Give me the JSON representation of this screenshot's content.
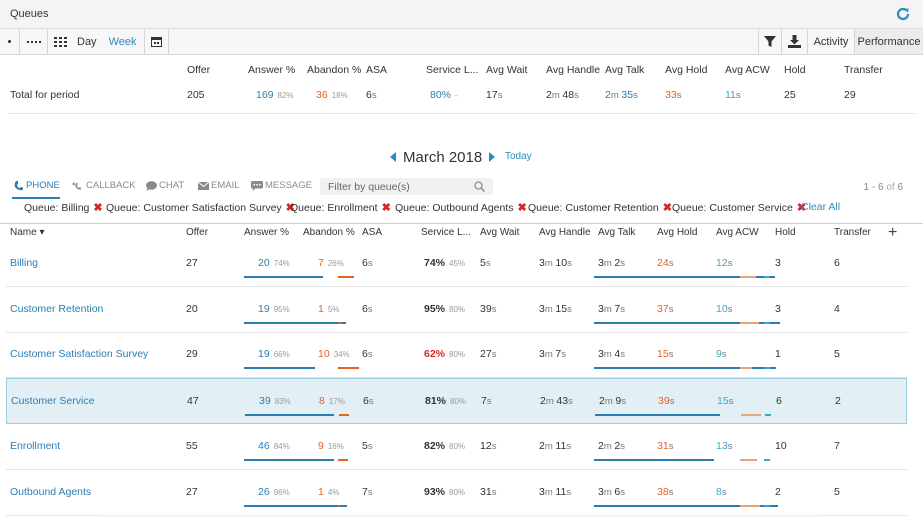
{
  "app": {
    "title": "Queues"
  },
  "toolbar": {
    "day_label": "Day",
    "week_label": "Week",
    "activity_label": "Activity",
    "performance_label": "Performance"
  },
  "summary": {
    "headers": [
      "Offer",
      "Answer %",
      "Abandon %",
      "ASA",
      "Service L...",
      "Avg Wait",
      "Avg Handle",
      "Avg Talk",
      "Avg Hold",
      "Avg ACW",
      "Hold",
      "Transfer"
    ],
    "row_label": "Total for period",
    "offer": "205",
    "answer": "169",
    "answer_pct": "82%",
    "abandon": "36",
    "abandon_pct": "18%",
    "asa_n": "6",
    "asa_u": "s",
    "service": "80%",
    "service_sub": "-",
    "wait_n": "17",
    "wait_u": "s",
    "handle_m": "2",
    "handle_s": "48",
    "talk_m": "2",
    "talk_s": "35",
    "hold_n": "33",
    "hold_u": "s",
    "acw_n": "11",
    "acw_u": "s",
    "hold_count": "25",
    "transfer": "29"
  },
  "calendar": {
    "month": "March 2018",
    "today_label": "Today"
  },
  "channels": {
    "phone": "PHONE",
    "callback": "CALLBACK",
    "chat": "CHAT",
    "email": "EMAIL",
    "message": "MESSAGE"
  },
  "filter": {
    "placeholder": "Filter by queue(s)"
  },
  "paging": {
    "range": "1 - 6",
    "of": "of",
    "total": "6"
  },
  "chips": {
    "items": [
      "Queue: Billing",
      "Queue: Customer Satisfaction Survey",
      "Queue: Enrollment",
      "Queue: Outbound Agents",
      "Queue: Customer Retention",
      "Queue: Customer Service"
    ],
    "clear_label": "Clear All"
  },
  "table": {
    "headers": [
      "Name",
      "Offer",
      "Answer %",
      "Abandon %",
      "ASA",
      "Service L...",
      "Avg Wait",
      "Avg Handle",
      "Avg Talk",
      "Avg Hold",
      "Avg ACW",
      "Hold",
      "Transfer"
    ],
    "rows": [
      {
        "name": "Billing",
        "offer": "27",
        "answer": "20",
        "answer_pct": "74%",
        "abandon": "7",
        "abandon_pct": "26%",
        "asa": "6",
        "service": "74%",
        "service_goal": "45%",
        "service_color": "#333333",
        "wait": "5",
        "handle_m": "3",
        "handle_s": "10",
        "talk_m": "3",
        "talk_s": "2",
        "hold": "24",
        "acw": "12",
        "hold_count": "3",
        "transfer": "6",
        "answer_frac": 0.74,
        "abandon_frac": 0.26,
        "talk_frac": 0.95,
        "hold_frac": 0.45,
        "acw_frac": 0.55
      },
      {
        "name": "Customer Retention",
        "offer": "20",
        "answer": "19",
        "answer_pct": "95%",
        "abandon": "1",
        "abandon_pct": "5%",
        "asa": "6",
        "service": "95%",
        "service_goal": "80%",
        "service_color": "#333333",
        "wait": "39",
        "handle_m": "3",
        "handle_s": "15",
        "talk_m": "3",
        "talk_s": "7",
        "hold": "37",
        "acw": "10",
        "hold_count": "3",
        "transfer": "4",
        "answer_frac": 0.95,
        "abandon_frac": 0.05,
        "talk_frac": 0.98,
        "hold_frac": 0.6,
        "acw_frac": 0.45
      },
      {
        "name": "Customer Satisfaction Survey",
        "offer": "29",
        "answer": "19",
        "answer_pct": "66%",
        "abandon": "10",
        "abandon_pct": "34%",
        "asa": "6",
        "service": "62%",
        "service_goal": "80%",
        "service_color": "#d9262c",
        "wait": "27",
        "handle_m": "3",
        "handle_s": "7",
        "talk_m": "3",
        "talk_s": "4",
        "hold": "15",
        "acw": "9",
        "hold_count": "1",
        "transfer": "5",
        "answer_frac": 0.66,
        "abandon_frac": 0.34,
        "talk_frac": 0.96,
        "hold_frac": 0.25,
        "acw_frac": 0.4
      },
      {
        "name": "Customer Service",
        "offer": "47",
        "answer": "39",
        "answer_pct": "83%",
        "abandon": "8",
        "abandon_pct": "17%",
        "asa": "6",
        "service": "81%",
        "service_goal": "80%",
        "service_color": "#333333",
        "wait": "7",
        "handle_m": "2",
        "handle_s": "43",
        "talk_m": "2",
        "talk_s": "9",
        "hold": "39",
        "acw": "15",
        "hold_count": "6",
        "transfer": "2",
        "answer_frac": 0.83,
        "abandon_frac": 0.17,
        "talk_frac": 0.66,
        "hold_frac": 0.65,
        "acw_frac": 0.68
      },
      {
        "name": "Enrollment",
        "offer": "55",
        "answer": "46",
        "answer_pct": "84%",
        "abandon": "9",
        "abandon_pct": "16%",
        "asa": "5",
        "service": "82%",
        "service_goal": "80%",
        "service_color": "#333333",
        "wait": "12",
        "handle_m": "2",
        "handle_s": "11",
        "talk_m": "2",
        "talk_s": "2",
        "hold": "31",
        "acw": "13",
        "hold_count": "10",
        "transfer": "7",
        "answer_frac": 0.84,
        "abandon_frac": 0.16,
        "talk_frac": 0.63,
        "hold_frac": 0.52,
        "acw_frac": 0.59
      },
      {
        "name": "Outbound Agents",
        "offer": "27",
        "answer": "26",
        "answer_pct": "96%",
        "abandon": "1",
        "abandon_pct": "4%",
        "asa": "7",
        "service": "93%",
        "service_goal": "80%",
        "service_color": "#333333",
        "wait": "31",
        "handle_m": "3",
        "handle_s": "11",
        "talk_m": "3",
        "talk_s": "6",
        "hold": "38",
        "acw": "8",
        "hold_count": "2",
        "transfer": "5",
        "answer_frac": 0.96,
        "abandon_frac": 0.04,
        "talk_frac": 0.97,
        "hold_frac": 0.63,
        "acw_frac": 0.36
      }
    ],
    "selected_index": 3
  },
  "colors": {
    "accent": "#2e8bc0",
    "link": "#2e7db1",
    "abandon": "#e2641e",
    "danger": "#d9262c",
    "acw": "#3aa9c9",
    "selected_row": "#e2f0f6"
  }
}
